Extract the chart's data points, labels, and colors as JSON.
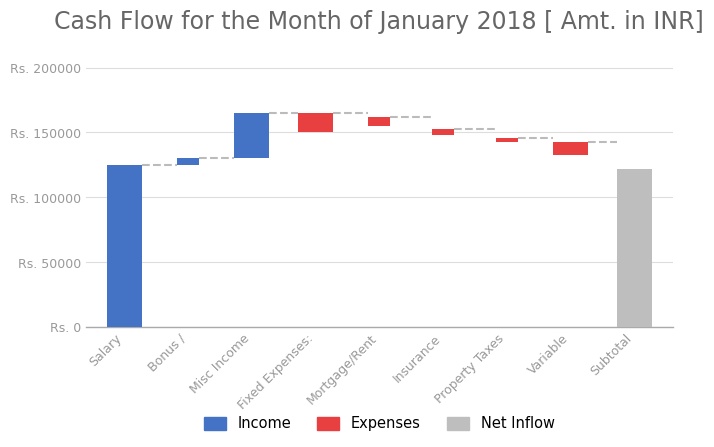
{
  "title": "Cash Flow for the Month of January 2018 [ Amt. in INR]",
  "categories": [
    "Salary",
    "Bonus /",
    "Misc Income",
    "Fixed Expenses:",
    "Mortgage/Rent",
    "Insurance",
    "Property Taxes",
    "Variable",
    "Subtotal"
  ],
  "bar_bottoms": [
    0,
    125000,
    130000,
    150000,
    155000,
    148000,
    143000,
    133000,
    0
  ],
  "bar_heights": [
    125000,
    5000,
    35000,
    15000,
    7000,
    5000,
    3000,
    10000,
    122000
  ],
  "bar_types": [
    "income",
    "income",
    "income",
    "expense",
    "expense",
    "expense",
    "expense",
    "expense",
    "net"
  ],
  "colors": {
    "income": "#4472C4",
    "expense": "#E84040",
    "net": "#BEBEBE"
  },
  "connector_color": "#BBBBBB",
  "connector_ls": "--",
  "connector_lw": 1.5,
  "ylim": [
    0,
    215000
  ],
  "yticks": [
    0,
    50000,
    100000,
    150000,
    200000
  ],
  "ytick_labels": [
    "Rs. 0",
    "Rs. 50000",
    "Rs. 100000",
    "Rs. 150000",
    "Rs. 200000"
  ],
  "background_color": "#ffffff",
  "title_fontsize": 17,
  "title_color": "#666666",
  "tick_fontsize": 9,
  "tick_color": "#999999",
  "legend_labels": [
    "Income",
    "Expenses",
    "Net Inflow"
  ],
  "legend_colors": [
    "#4472C4",
    "#E84040",
    "#BEBEBE"
  ],
  "grid_color": "#DDDDDD",
  "bar_width": 0.55,
  "thin_bar_width": 0.35,
  "thin_bar_categories": [
    "Bonus /",
    "Mortgage/Rent",
    "Insurance",
    "Property Taxes"
  ]
}
